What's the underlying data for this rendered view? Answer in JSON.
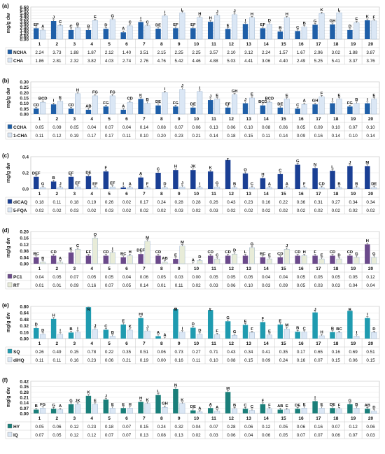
{
  "ylabel": "mg/g dw",
  "chart_data": [
    {
      "type": "bar",
      "panel": "(a)",
      "categories": [
        "1",
        "2",
        "3",
        "4",
        "5",
        "6",
        "7",
        "8",
        "9",
        "10",
        "11",
        "12",
        "13",
        "14",
        "15",
        "16",
        "17",
        "18",
        "19",
        "20"
      ],
      "ylim": [
        0,
        6.6
      ],
      "yticks": [
        "0.00",
        "0.60",
        "1.20",
        "1.80",
        "2.40",
        "3.00",
        "3.60",
        "4.20",
        "4.80",
        "5.40",
        "6.00",
        "6.60"
      ],
      "ylabel": "mg/g dw",
      "series": [
        {
          "name": "NCHA",
          "color": "#1f5fa8",
          "values": [
            2.24,
            3.73,
            1.88,
            1.87,
            2.12,
            1.4,
            3.51,
            2.15,
            2.25,
            2.25,
            3.57,
            2.1,
            3.12,
            2.24,
            1.57,
            1.67,
            2.96,
            3.02,
            1.88,
            3.87
          ],
          "letters": [
            "EF",
            "J",
            "C",
            "B",
            "D",
            "A",
            "I",
            "DE",
            "EF",
            "EF",
            "H",
            "E",
            "I",
            "EF",
            "B",
            "C",
            "G",
            "GH",
            "D",
            "K"
          ]
        },
        {
          "name": "CHA",
          "color": "#dbe7f5",
          "values": [
            1.86,
            2.81,
            2.32,
            3.82,
            4.03,
            2.74,
            2.76,
            4.76,
            5.42,
            4.46,
            4.88,
            5.03,
            4.41,
            3.06,
            4.4,
            2.49,
            5.25,
            5.41,
            3.37,
            3.76
          ],
          "letters": [
            "A",
            "C",
            "B",
            "E",
            "G",
            "C",
            "C",
            "I",
            "L",
            "H",
            "J",
            "J",
            "H",
            "D",
            "H",
            "B",
            "K",
            "L",
            "E",
            "F"
          ]
        }
      ]
    },
    {
      "type": "bar",
      "panel": "(b)",
      "categories": [
        "1",
        "2",
        "3",
        "4",
        "5",
        "6",
        "7",
        "8",
        "9",
        "10",
        "11",
        "12",
        "13",
        "14",
        "15",
        "16",
        "17",
        "18",
        "19",
        "20"
      ],
      "ylim": [
        0,
        0.3
      ],
      "yticks": [
        "0.00",
        "0.05",
        "0.10",
        "0.15",
        "0.20",
        "0.25",
        "0.30"
      ],
      "ylabel": "mg/g dw",
      "series": [
        {
          "name": "CCHA",
          "color": "#1f5fa8",
          "values": [
            0.05,
            0.09,
            0.05,
            0.04,
            0.07,
            0.04,
            0.14,
            0.08,
            0.07,
            0.06,
            0.13,
            0.06,
            0.1,
            0.08,
            0.06,
            0.05,
            0.09,
            0.1,
            0.07,
            0.1
          ],
          "letters": [
            "CD",
            "I",
            "CD",
            "AB",
            "FG",
            "A",
            "K",
            "DE",
            "FG",
            "DE",
            "J",
            "EF",
            "J",
            "BCD",
            "DE",
            "C",
            "GH",
            "I",
            "FG",
            "I"
          ]
        },
        {
          "name": "1-CHA",
          "color": "#dbe7f5",
          "values": [
            0.11,
            0.12,
            0.19,
            0.17,
            0.17,
            0.11,
            0.1,
            0.2,
            0.23,
            0.21,
            0.14,
            0.18,
            0.15,
            0.11,
            0.14,
            0.09,
            0.16,
            0.14,
            0.1,
            0.14
          ],
          "letters": [
            "BCD",
            "E",
            "H",
            "FG",
            "FG",
            "CD",
            "B",
            "I",
            "J",
            "I",
            "E",
            "GH",
            "E",
            "BCD",
            "E",
            "A",
            "F",
            "E",
            "B",
            "E"
          ]
        }
      ]
    },
    {
      "type": "bar",
      "panel": "(c)",
      "categories": [
        "1",
        "2",
        "3",
        "4",
        "5",
        "6",
        "7",
        "8",
        "9",
        "10",
        "11",
        "12",
        "13",
        "14",
        "15",
        "16",
        "17",
        "18",
        "19",
        "20"
      ],
      "ylim": [
        0,
        0.48
      ],
      "yticks": [
        "0.0",
        "0.2",
        "0.4"
      ],
      "ylabel": "mg/g dw",
      "series": [
        {
          "name": "diCAQ",
          "color": "#1a3f94",
          "values": [
            0.18,
            0.11,
            0.18,
            0.19,
            0.26,
            0.02,
            0.17,
            0.24,
            0.28,
            0.28,
            0.26,
            0.43,
            0.23,
            0.16,
            0.22,
            0.36,
            0.31,
            0.27,
            0.34,
            0.34
          ],
          "letters": [
            "DEF",
            "B",
            "EF",
            "DE",
            "F",
            "I",
            "A",
            "C",
            "H",
            "JK",
            "K",
            "I",
            "O",
            "H",
            "C",
            "G",
            "N",
            "L",
            "J",
            "M"
          ]
        },
        {
          "name": "5-FQA",
          "color": "#dbe7f5",
          "values": [
            0.02,
            0.02,
            0.03,
            0.02,
            0.03,
            0.02,
            0.02,
            0.02,
            0.03,
            0.02,
            0.03,
            0.02,
            0.02,
            0.02,
            0.02,
            0.02,
            0.02,
            0.02,
            0.02,
            0.02
          ],
          "letters": [
            "G",
            "J",
            "EF",
            "EF",
            "EF",
            "A",
            "F",
            "D",
            "J",
            "I",
            "G",
            "B",
            "C",
            "A",
            "A",
            "F",
            "CD",
            "B",
            "B",
            "DE"
          ]
        }
      ]
    },
    {
      "type": "bar",
      "panel": "(d)",
      "categories": [
        "1",
        "2",
        "3",
        "4",
        "5",
        "6",
        "7",
        "8",
        "9",
        "10",
        "11",
        "12",
        "13",
        "14",
        "15",
        "16",
        "17",
        "18",
        "19",
        "20"
      ],
      "ylim": [
        0,
        0.2
      ],
      "yticks": [
        "0.00",
        "0.04",
        "0.08",
        "0.12",
        "0.16",
        "0.20"
      ],
      "ylabel": "mg/g dw",
      "series": [
        {
          "name": "PC1",
          "color": "#6b4a8b",
          "values": [
            0.04,
            0.05,
            0.07,
            0.05,
            0.05,
            0.04,
            0.06,
            0.05,
            0.03,
            0.0,
            0.05,
            0.05,
            0.05,
            0.04,
            0.04,
            0.05,
            0.05,
            0.05,
            0.05,
            0.12
          ],
          "letters": [
            "BC",
            "CD",
            "K",
            "EF",
            "CD",
            "BC",
            "DEF",
            "CD",
            "E",
            "A",
            "CD",
            "CD",
            "L",
            "BC",
            "CD",
            "CD",
            "F",
            "CD",
            "CD",
            "H"
          ]
        },
        {
          "name": "RT",
          "color": "#e8ecd8",
          "values": [
            0.01,
            0.01,
            0.09,
            0.16,
            0.07,
            0.05,
            0.14,
            0.01,
            0.11,
            0.02,
            0.03,
            0.06,
            0.1,
            0.03,
            0.09,
            0.05,
            0.03,
            0.03,
            0.04,
            0.04
          ],
          "letters": [
            "B",
            "A",
            "C",
            "O",
            "I",
            "H",
            "M",
            "AB",
            "M",
            "D",
            "C",
            "D",
            "G",
            "E",
            "J",
            "H",
            "E",
            "D",
            "G",
            "G"
          ]
        }
      ]
    },
    {
      "type": "bar",
      "panel": "(e)",
      "categories": [
        "1",
        "2",
        "3",
        "4",
        "5",
        "6",
        "7",
        "8",
        "9",
        "10",
        "11",
        "12",
        "13",
        "14",
        "15",
        "16",
        "17",
        "18",
        "19",
        "20"
      ],
      "ylim": [
        0,
        0.8
      ],
      "yticks": [
        "0.00",
        "0.16",
        "0.32",
        "0.48",
        "0.64",
        "0.80"
      ],
      "ylabel": "mg/g dw",
      "series": [
        {
          "name": "SQ",
          "color": "#1f9bb0",
          "values": [
            0.26,
            0.49,
            0.15,
            0.78,
            0.22,
            0.35,
            0.51,
            0.06,
            0.73,
            0.27,
            0.71,
            0.43,
            0.34,
            0.41,
            0.35,
            0.17,
            0.65,
            0.16,
            0.69,
            0.51
          ],
          "letters": [
            "D",
            "H",
            "B",
            "N",
            "C",
            "E",
            "HI",
            "A",
            "M",
            "D",
            "L",
            "G",
            "E",
            "F",
            "E",
            "B",
            "J",
            "B",
            "K",
            "I"
          ]
        },
        {
          "name": "diHQ",
          "color": "#dbe7f5",
          "values": [
            0.11,
            0.11,
            0.16,
            0.23,
            0.06,
            0.21,
            0.19,
            0.0,
            0.16,
            0.11,
            0.1,
            0.08,
            0.15,
            0.09,
            0.24,
            0.16,
            0.07,
            0.15,
            0.06,
            0.15
          ],
          "letters": [
            "D",
            "I",
            "I",
            "J",
            "B",
            "K",
            "J",
            "A",
            "I",
            "D",
            "F",
            "G",
            "F",
            "E",
            "M",
            "C",
            "H",
            "BC",
            "I",
            "D"
          ]
        }
      ]
    },
    {
      "type": "bar",
      "panel": "(f)",
      "categories": [
        "1",
        "2",
        "3",
        "4",
        "5",
        "6",
        "7",
        "8",
        "9",
        "10",
        "11",
        "12",
        "13",
        "14",
        "15",
        "16",
        "17",
        "18",
        "19",
        "20"
      ],
      "ylim": [
        0,
        0.42
      ],
      "yticks": [
        "0.00",
        "0.07",
        "0.14",
        "0.21",
        "0.28",
        "0.35",
        "0.42"
      ],
      "ylabel": "mg/g dw",
      "series": [
        {
          "name": "HY",
          "color": "#1a7f7a",
          "values": [
            0.05,
            0.06,
            0.12,
            0.23,
            0.18,
            0.07,
            0.15,
            0.24,
            0.32,
            0.04,
            0.07,
            0.28,
            0.06,
            0.12,
            0.05,
            0.06,
            0.16,
            0.07,
            0.12,
            0.06
          ],
          "letters": [
            "B",
            "G",
            "G",
            "K",
            "J",
            "E",
            "H",
            "L",
            "N",
            "DE",
            "A",
            "M",
            "C",
            "F",
            "AB",
            "DE",
            "I",
            "DE",
            "G",
            "AB"
          ]
        },
        {
          "name": "IQ",
          "color": "#dbe7f5",
          "values": [
            0.07,
            0.05,
            0.12,
            0.12,
            0.07,
            0.07,
            0.13,
            0.08,
            0.13,
            0.02,
            0.03,
            0.06,
            0.04,
            0.06,
            0.05,
            0.07,
            0.07,
            0.06,
            0.07,
            0.03
          ],
          "letters": [
            "FG",
            "A",
            "JK",
            "E",
            "E",
            "H",
            "K",
            "GH",
            "K",
            "A",
            "A",
            "B",
            "C",
            "F",
            "E",
            "E",
            "E",
            "F",
            "B",
            "D"
          ]
        }
      ]
    }
  ]
}
